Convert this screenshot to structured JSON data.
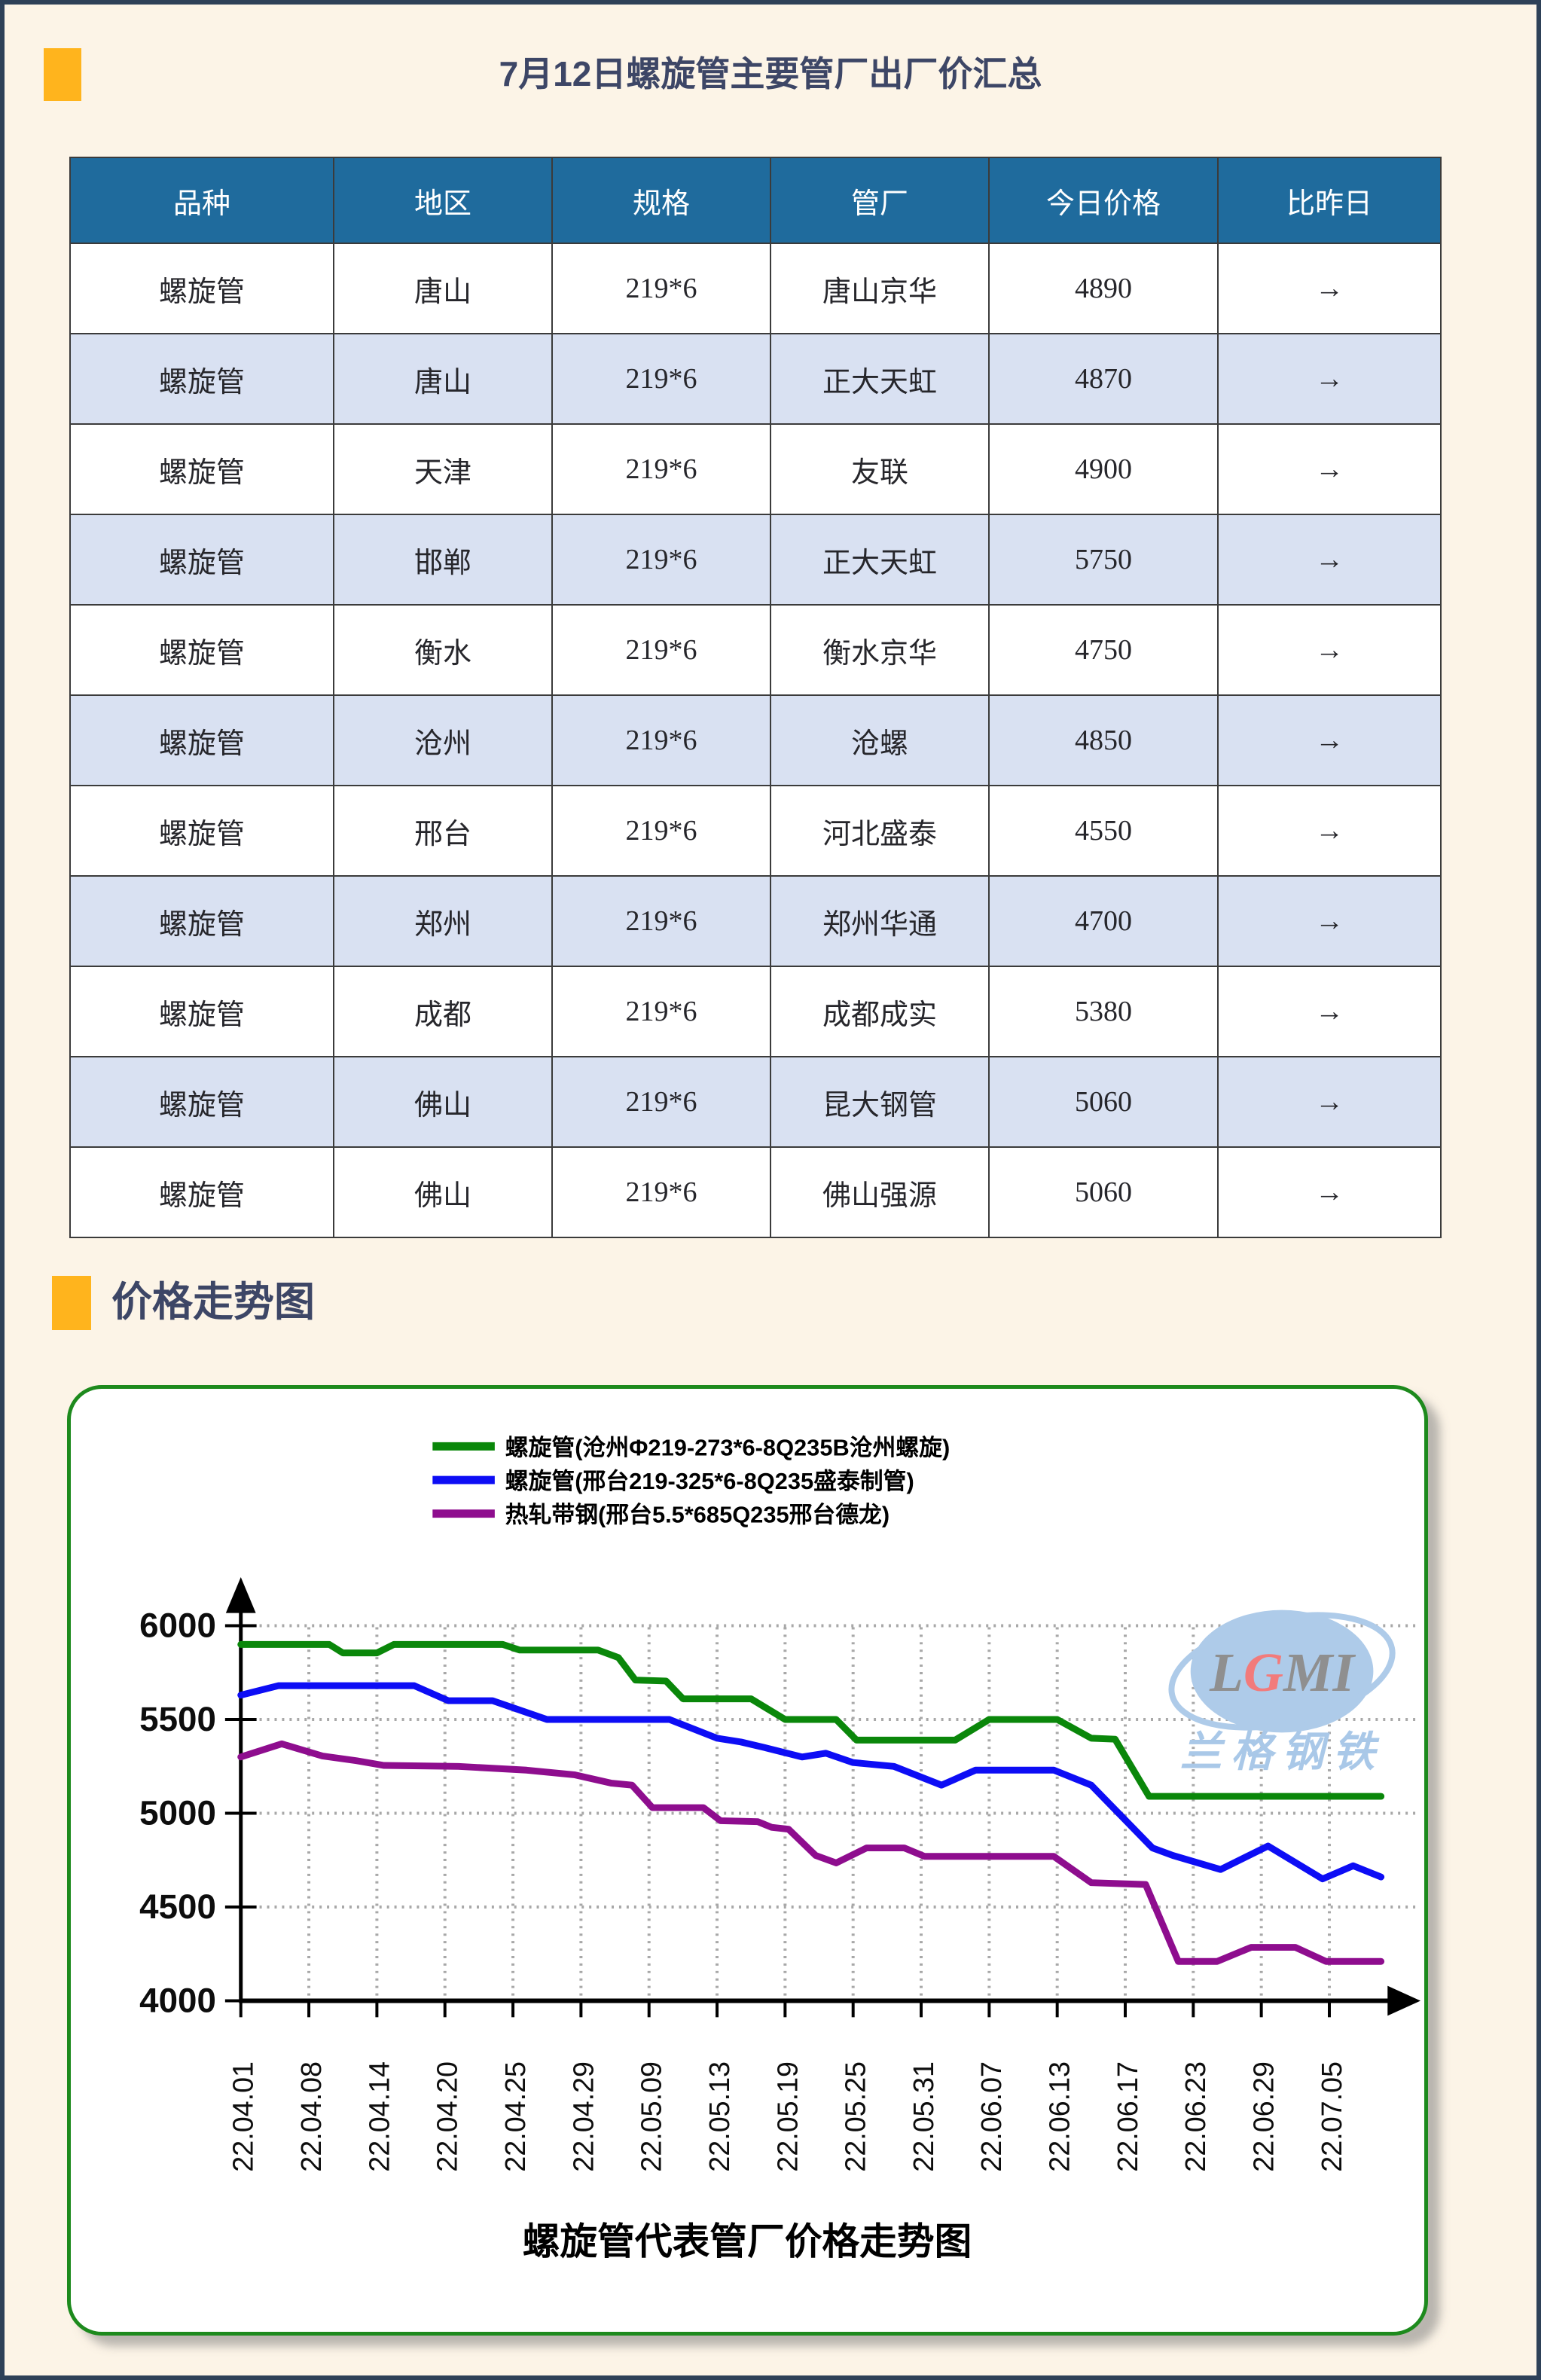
{
  "header": {
    "title": "7月12日螺旋管主要管厂出厂价汇总"
  },
  "trend_section": {
    "title": "价格走势图"
  },
  "table": {
    "headers": [
      "品种",
      "地区",
      "规格",
      "管厂",
      "今日价格",
      "比昨日"
    ],
    "rows": [
      [
        "螺旋管",
        "唐山",
        "219*6",
        "唐山京华",
        "4890",
        "→"
      ],
      [
        "螺旋管",
        "唐山",
        "219*6",
        "正大天虹",
        "4870",
        "→"
      ],
      [
        "螺旋管",
        "天津",
        "219*6",
        "友联",
        "4900",
        "→"
      ],
      [
        "螺旋管",
        "邯郸",
        "219*6",
        "正大天虹",
        "5750",
        "→"
      ],
      [
        "螺旋管",
        "衡水",
        "219*6",
        "衡水京华",
        "4750",
        "→"
      ],
      [
        "螺旋管",
        "沧州",
        "219*6",
        "沧螺",
        "4850",
        "→"
      ],
      [
        "螺旋管",
        "邢台",
        "219*6",
        "河北盛泰",
        "4550",
        "→"
      ],
      [
        "螺旋管",
        "郑州",
        "219*6",
        "郑州华通",
        "4700",
        "→"
      ],
      [
        "螺旋管",
        "成都",
        "219*6",
        "成都成实",
        "5380",
        "→"
      ],
      [
        "螺旋管",
        "佛山",
        "219*6",
        "昆大钢管",
        "5060",
        "→"
      ],
      [
        "螺旋管",
        "佛山",
        "219*6",
        "佛山强源",
        "5060",
        "→"
      ]
    ]
  },
  "chart_data": {
    "type": "line",
    "title": "螺旋管代表管厂价格走势图",
    "xlabel": "",
    "ylabel": "",
    "ylim": [
      4000,
      6000
    ],
    "y_ticks": [
      6000,
      5500,
      5000,
      4500,
      4000
    ],
    "grid": true,
    "legend_position": "top",
    "watermark": {
      "logo_l": "L",
      "logo_g": "G",
      "logo_mi": "MI",
      "name": "兰格钢铁"
    },
    "x_labels": [
      "22.04.01",
      "22.04.08",
      "22.04.14",
      "22.04.20",
      "22.04.25",
      "22.04.29",
      "22.05.09",
      "22.05.13",
      "22.05.19",
      "22.05.25",
      "22.05.31",
      "22.06.07",
      "22.06.13",
      "22.06.17",
      "22.06.23",
      "22.06.29",
      "22.07.05"
    ],
    "series": [
      {
        "name": "螺旋管(沧州Φ219-273*6-8Q235B沧州螺旋)",
        "color": "#0a870a",
        "points": [
          [
            0,
            5900
          ],
          [
            1.3,
            5900
          ],
          [
            1.5,
            5855
          ],
          [
            2.0,
            5855
          ],
          [
            2.25,
            5900
          ],
          [
            3.85,
            5900
          ],
          [
            4.1,
            5870
          ],
          [
            5.25,
            5870
          ],
          [
            5.55,
            5830
          ],
          [
            5.8,
            5710
          ],
          [
            6.25,
            5705
          ],
          [
            6.5,
            5610
          ],
          [
            7.5,
            5610
          ],
          [
            8.0,
            5500
          ],
          [
            8.75,
            5500
          ],
          [
            9.05,
            5390
          ],
          [
            10.5,
            5390
          ],
          [
            11.0,
            5500
          ],
          [
            12.0,
            5500
          ],
          [
            12.5,
            5400
          ],
          [
            12.85,
            5395
          ],
          [
            13.35,
            5090
          ],
          [
            16.76,
            5090
          ]
        ]
      },
      {
        "name": "螺旋管(邢台219-325*6-8Q235盛泰制管)",
        "color": "#0d0df5",
        "points": [
          [
            0,
            5630
          ],
          [
            0.55,
            5680
          ],
          [
            2.55,
            5680
          ],
          [
            3.05,
            5600
          ],
          [
            3.7,
            5600
          ],
          [
            4.5,
            5500
          ],
          [
            6.3,
            5500
          ],
          [
            7.0,
            5400
          ],
          [
            7.35,
            5380
          ],
          [
            7.7,
            5350
          ],
          [
            8.25,
            5300
          ],
          [
            8.6,
            5320
          ],
          [
            9.0,
            5270
          ],
          [
            9.6,
            5250
          ],
          [
            10.3,
            5150
          ],
          [
            10.8,
            5230
          ],
          [
            11.95,
            5230
          ],
          [
            12.5,
            5150
          ],
          [
            13.4,
            4815
          ],
          [
            13.7,
            4775
          ],
          [
            14.4,
            4700
          ],
          [
            15.1,
            4825
          ],
          [
            15.9,
            4650
          ],
          [
            16.35,
            4720
          ],
          [
            16.76,
            4660
          ]
        ]
      },
      {
        "name": "热轧带钢(邢台5.5*685Q235邢台德龙)",
        "color": "#8e0d8e",
        "points": [
          [
            0,
            5300
          ],
          [
            0.6,
            5370
          ],
          [
            1.2,
            5305
          ],
          [
            1.7,
            5280
          ],
          [
            2.1,
            5255
          ],
          [
            3.2,
            5250
          ],
          [
            4.2,
            5230
          ],
          [
            4.9,
            5205
          ],
          [
            5.45,
            5160
          ],
          [
            5.75,
            5150
          ],
          [
            6.05,
            5030
          ],
          [
            6.8,
            5030
          ],
          [
            7.05,
            4960
          ],
          [
            7.6,
            4955
          ],
          [
            7.8,
            4925
          ],
          [
            8.05,
            4915
          ],
          [
            8.45,
            4775
          ],
          [
            8.75,
            4735
          ],
          [
            9.2,
            4815
          ],
          [
            9.75,
            4815
          ],
          [
            10.05,
            4770
          ],
          [
            11.95,
            4770
          ],
          [
            12.5,
            4630
          ],
          [
            13.3,
            4620
          ],
          [
            13.78,
            4210
          ],
          [
            14.35,
            4210
          ],
          [
            14.85,
            4285
          ],
          [
            15.5,
            4285
          ],
          [
            15.95,
            4210
          ],
          [
            16.76,
            4210
          ]
        ]
      }
    ]
  },
  "colors": {
    "page_background": "#FCF4E7",
    "page_border": "#2E4158",
    "accent_orange": "#FFB41D",
    "table_header_blue": "#1F6B9D",
    "row_stripe": "#D9E1F2",
    "title_navy": "#3D4666",
    "card_border_green": "#1d8a1d"
  }
}
